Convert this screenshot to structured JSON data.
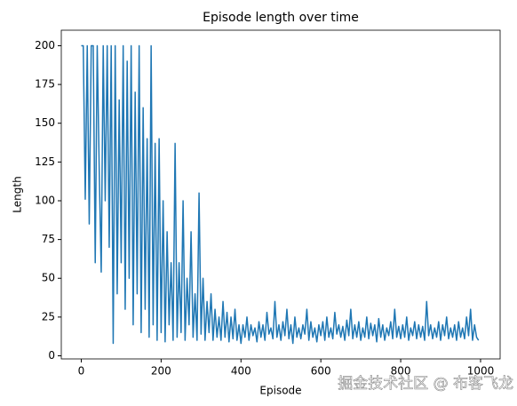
{
  "chart_data": {
    "type": "line",
    "title": "Episode length over time",
    "xlabel": "Episode",
    "ylabel": "Length",
    "watermark": "掘金技术社区 @ 布客飞龙",
    "x": [
      0,
      5,
      10,
      15,
      20,
      25,
      30,
      35,
      40,
      45,
      50,
      55,
      60,
      65,
      70,
      75,
      80,
      85,
      90,
      95,
      100,
      105,
      110,
      115,
      120,
      125,
      130,
      135,
      140,
      145,
      150,
      155,
      160,
      165,
      170,
      175,
      180,
      185,
      190,
      195,
      200,
      205,
      210,
      215,
      220,
      225,
      230,
      235,
      240,
      245,
      250,
      255,
      260,
      265,
      270,
      275,
      280,
      285,
      290,
      295,
      300,
      305,
      310,
      315,
      320,
      325,
      330,
      335,
      340,
      345,
      350,
      355,
      360,
      365,
      370,
      375,
      380,
      385,
      390,
      395,
      400,
      405,
      410,
      415,
      420,
      425,
      430,
      435,
      440,
      445,
      450,
      455,
      460,
      465,
      470,
      475,
      480,
      485,
      490,
      495,
      500,
      505,
      510,
      515,
      520,
      525,
      530,
      535,
      540,
      545,
      550,
      555,
      560,
      565,
      570,
      575,
      580,
      585,
      590,
      595,
      600,
      605,
      610,
      615,
      620,
      625,
      630,
      635,
      640,
      645,
      650,
      655,
      660,
      665,
      670,
      675,
      680,
      685,
      690,
      695,
      700,
      705,
      710,
      715,
      720,
      725,
      730,
      735,
      740,
      745,
      750,
      755,
      760,
      765,
      770,
      775,
      780,
      785,
      790,
      795,
      800,
      805,
      810,
      815,
      820,
      825,
      830,
      835,
      840,
      845,
      850,
      855,
      860,
      865,
      870,
      875,
      880,
      885,
      890,
      895,
      900,
      905,
      910,
      915,
      920,
      925,
      930,
      935,
      940,
      945,
      950,
      955,
      960,
      965,
      970,
      975,
      980,
      985,
      990,
      995
    ],
    "series": [
      {
        "name": "Length",
        "color": "#1f77b4",
        "values": [
          200,
          200,
          101,
          200,
          85,
          200,
          200,
          60,
          200,
          120,
          54,
          200,
          100,
          200,
          70,
          200,
          8,
          200,
          40,
          165,
          60,
          200,
          30,
          190,
          50,
          200,
          20,
          170,
          40,
          200,
          15,
          160,
          30,
          140,
          12,
          200,
          20,
          137,
          10,
          140,
          15,
          100,
          9,
          80,
          20,
          60,
          10,
          137,
          12,
          60,
          15,
          100,
          10,
          50,
          20,
          80,
          12,
          40,
          10,
          105,
          14,
          50,
          10,
          35,
          15,
          40,
          10,
          30,
          12,
          25,
          10,
          35,
          12,
          28,
          9,
          25,
          11,
          30,
          10,
          20,
          8,
          20,
          12,
          25,
          10,
          20,
          13,
          18,
          9,
          22,
          12,
          20,
          10,
          28,
          14,
          18,
          11,
          35,
          12,
          20,
          10,
          22,
          13,
          30,
          11,
          20,
          8,
          25,
          12,
          18,
          11,
          20,
          14,
          30,
          10,
          22,
          12,
          18,
          9,
          20,
          13,
          22,
          10,
          25,
          12,
          18,
          11,
          28,
          14,
          20,
          12,
          19,
          10,
          23,
          13,
          30,
          11,
          20,
          12,
          22,
          10,
          18,
          12,
          25,
          11,
          21,
          13,
          20,
          9,
          24,
          12,
          20,
          10,
          18,
          13,
          22,
          11,
          30,
          12,
          19,
          11,
          20,
          12,
          25,
          10,
          18,
          13,
          22,
          11,
          20,
          12,
          19,
          10,
          35,
          13,
          20,
          11,
          18,
          12,
          22,
          10,
          20,
          13,
          25,
          11,
          18,
          12,
          20,
          10,
          22,
          12,
          18,
          11,
          25,
          13,
          30,
          10,
          20,
          12,
          10
        ]
      }
    ],
    "xlim": [
      -50,
      1049
    ],
    "ylim": [
      -2,
      210
    ],
    "xticks": [
      0,
      200,
      400,
      600,
      800,
      1000
    ],
    "yticks": [
      0,
      25,
      50,
      75,
      100,
      125,
      150,
      175,
      200
    ]
  }
}
